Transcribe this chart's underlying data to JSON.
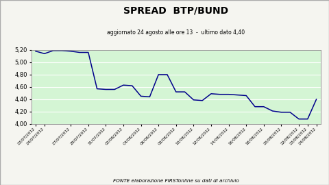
{
  "title": "SPREAD  BTP/BUND",
  "subtitle": "aggiornato 24 agosto alle ore 13  -  ultimo dato 4,40",
  "source": "FONTE elaborazione FIRSTonline su dati di archivio",
  "bg_color": "#d4f5d4",
  "line_color": "#00008b",
  "border_color": "#888888",
  "grid_color": "#ffffff",
  "ylim": [
    4.0,
    5.2
  ],
  "yticks": [
    4.0,
    4.2,
    4.4,
    4.6,
    4.8,
    5.0,
    5.2
  ],
  "ytick_labels": [
    "4,00",
    "4,20",
    "4,40",
    "4,60",
    "4,80",
    "5,00",
    "5,20"
  ],
  "dates": [
    "23/07/2012",
    "24/07/2012",
    "25/07/2012",
    "26/07/2012",
    "27/07/2012",
    "28/07/2012",
    "29/07/2012",
    "30/07/2012",
    "31/07/2012",
    "01/08/2012",
    "02/08/2012",
    "03/08/2012",
    "04/08/2012",
    "05/08/2012",
    "06/08/2012",
    "07/08/2012",
    "08/08/2012",
    "09/08/2012",
    "10/08/2012",
    "11/08/2012",
    "12/08/2012",
    "13/08/2012",
    "14/08/2012",
    "15/08/2012",
    "16/08/2012",
    "17/08/2012",
    "18/08/2012",
    "19/08/2012",
    "20/08/2012",
    "21/08/2012",
    "22/08/2012",
    "23/08/2012",
    "24/08/2012"
  ],
  "xtick_labels": [
    "23/07/2012",
    "24/07/2012",
    "27/07/2012",
    "29/07/2012",
    "31/07/2012",
    "02/08/2012",
    "04/08/2012",
    "06/08/2012",
    "08/08/2012",
    "10/08/2012",
    "12/08/2012",
    "14/08/2012",
    "16/08/2012",
    "18/08/2012",
    "20/08/2012",
    "22/08/2012",
    "23/08/2012",
    "24/08/2012"
  ],
  "values": [
    5.18,
    5.14,
    5.19,
    5.19,
    5.18,
    5.16,
    5.16,
    4.57,
    4.56,
    4.56,
    4.63,
    4.62,
    4.45,
    4.44,
    4.8,
    4.8,
    4.52,
    4.52,
    4.39,
    4.38,
    4.49,
    4.48,
    4.48,
    4.47,
    4.46,
    4.28,
    4.28,
    4.21,
    4.19,
    4.19,
    4.08,
    4.08,
    4.4
  ],
  "title_fontsize": 10,
  "subtitle_fontsize": 5.5,
  "ytick_fontsize": 6,
  "xtick_fontsize": 4.2,
  "source_fontsize": 5.2,
  "linewidth": 1.1
}
